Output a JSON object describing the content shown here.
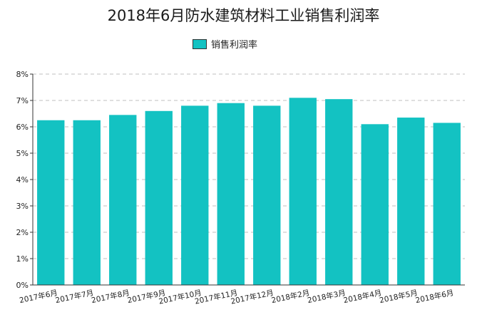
{
  "chart_data": {
    "type": "bar",
    "title": "2018年6月防水建筑材料工业销售利润率",
    "categories": [
      "2017年6月",
      "2017年7月",
      "2017年8月",
      "2017年9月",
      "2017年10月",
      "2017年11月",
      "2017年12月",
      "2018年2月",
      "2018年3月",
      "2018年4月",
      "2018年5月",
      "2018年6月"
    ],
    "series": [
      {
        "name": "销售利润率",
        "values": [
          6.25,
          6.25,
          6.45,
          6.6,
          6.8,
          6.9,
          6.8,
          7.1,
          7.05,
          6.1,
          6.35,
          6.15
        ]
      }
    ],
    "ylim": [
      0,
      8
    ],
    "yticks": [
      "0%",
      "1%",
      "2%",
      "3%",
      "4%",
      "5%",
      "6%",
      "7%",
      "8%"
    ],
    "grid": true,
    "legend_position": "top-center",
    "colors": {
      "bar": "#13c2c2",
      "grid": "#bfbfbf",
      "axis": "#333333"
    }
  }
}
